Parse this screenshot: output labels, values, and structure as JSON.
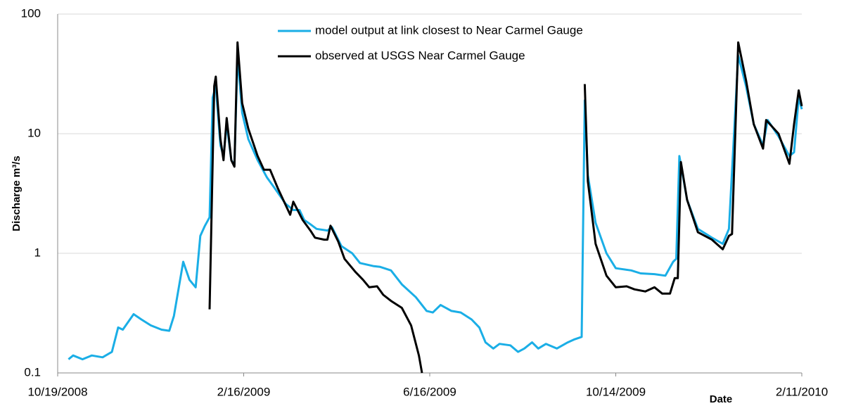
{
  "chart_data": {
    "type": "line",
    "y_label": "Discharge m³/s",
    "x_label": "Date",
    "log_y": true,
    "grid": true,
    "ylim": [
      0.1,
      100
    ],
    "yticks": [
      0.1,
      1,
      10,
      100
    ],
    "xlim": [
      "2008-10-19",
      "2010-02-11"
    ],
    "xticks": [
      {
        "value": "2008-10-19",
        "label": "10/19/2008"
      },
      {
        "value": "2009-02-16",
        "label": "2/16/2009"
      },
      {
        "value": "2009-06-16",
        "label": "6/16/2009"
      },
      {
        "value": "2009-10-14",
        "label": "10/14/2009"
      },
      {
        "value": "2010-02-11",
        "label": "2/11/2010"
      }
    ],
    "series": [
      {
        "name": "model output at link closest to Near Carmel Gauge",
        "color": "#1aaee6",
        "x": [
          "2008-10-26",
          "2008-10-29",
          "2008-11-04",
          "2008-11-10",
          "2008-11-17",
          "2008-11-23",
          "2008-11-27",
          "2008-11-30",
          "2008-12-07",
          "2008-12-12",
          "2008-12-18",
          "2008-12-25",
          "2008-12-30",
          "2009-01-02",
          "2009-01-08",
          "2009-01-12",
          "2009-01-16",
          "2009-01-19",
          "2009-01-22",
          "2009-01-25",
          "2009-01-27",
          "2009-01-29",
          "2009-02-01",
          "2009-02-03",
          "2009-02-05",
          "2009-02-08",
          "2009-02-10",
          "2009-02-12",
          "2009-02-15",
          "2009-02-19",
          "2009-02-25",
          "2009-03-03",
          "2009-03-08",
          "2009-03-15",
          "2009-03-20",
          "2009-03-24",
          "2009-03-27",
          "2009-03-31",
          "2009-04-04",
          "2009-04-11",
          "2009-04-14",
          "2009-04-20",
          "2009-04-27",
          "2009-05-02",
          "2009-05-11",
          "2009-05-15",
          "2009-05-22",
          "2009-05-29",
          "2009-06-07",
          "2009-06-14",
          "2009-06-18",
          "2009-06-23",
          "2009-06-30",
          "2009-07-06",
          "2009-07-13",
          "2009-07-18",
          "2009-07-22",
          "2009-07-27",
          "2009-07-31",
          "2009-08-07",
          "2009-08-12",
          "2009-08-16",
          "2009-08-21",
          "2009-08-25",
          "2009-08-30",
          "2009-09-06",
          "2009-09-13",
          "2009-09-17",
          "2009-09-22",
          "2009-09-24",
          "2009-09-26",
          "2009-10-01",
          "2009-10-08",
          "2009-10-14",
          "2009-10-24",
          "2009-10-30",
          "2009-11-08",
          "2009-11-15",
          "2009-11-20",
          "2009-11-22",
          "2009-11-24",
          "2009-11-29",
          "2009-12-06",
          "2009-12-15",
          "2009-12-22",
          "2009-12-26",
          "2010-01-01",
          "2010-01-06",
          "2010-01-11",
          "2010-01-17",
          "2010-01-20",
          "2010-01-27",
          "2010-02-03",
          "2010-02-06",
          "2010-02-09",
          "2010-02-11"
        ],
        "values": [
          0.13,
          0.14,
          0.13,
          0.14,
          0.135,
          0.15,
          0.24,
          0.23,
          0.31,
          0.28,
          0.25,
          0.23,
          0.225,
          0.3,
          0.85,
          0.6,
          0.52,
          1.4,
          1.7,
          2.0,
          20,
          25,
          8,
          6.5,
          12,
          6,
          5.5,
          45,
          15,
          9,
          6,
          4.3,
          3.5,
          2.6,
          2.3,
          2.3,
          1.9,
          1.75,
          1.6,
          1.55,
          1.65,
          1.15,
          1.0,
          0.83,
          0.78,
          0.77,
          0.72,
          0.55,
          0.43,
          0.33,
          0.32,
          0.37,
          0.33,
          0.32,
          0.28,
          0.24,
          0.18,
          0.16,
          0.175,
          0.17,
          0.15,
          0.16,
          0.18,
          0.16,
          0.175,
          0.16,
          0.18,
          0.19,
          0.2,
          19,
          4.5,
          1.8,
          1.0,
          0.75,
          0.72,
          0.68,
          0.67,
          0.65,
          0.85,
          0.9,
          6.5,
          2.8,
          1.6,
          1.35,
          1.2,
          1.6,
          45,
          25,
          12,
          8,
          13,
          9.5,
          6.5,
          7,
          20,
          16
        ]
      },
      {
        "name": "observed at USGS Near Carmel Gauge",
        "color": "#000000",
        "x": [
          "2009-01-25",
          "2009-01-28",
          "2009-01-29",
          "2009-02-01",
          "2009-02-03",
          "2009-02-05",
          "2009-02-08",
          "2009-02-10",
          "2009-02-12",
          "2009-02-15",
          "2009-02-19",
          "2009-02-25",
          "2009-03-01",
          "2009-03-05",
          "2009-03-10",
          "2009-03-18",
          "2009-03-20",
          "2009-03-26",
          "2009-03-31",
          "2009-04-03",
          "2009-04-09",
          "2009-04-11",
          "2009-04-13",
          "2009-04-18",
          "2009-04-22",
          "2009-04-29",
          "2009-05-04",
          "2009-05-08",
          "2009-05-13",
          "2009-05-17",
          "2009-05-22",
          "2009-05-29",
          "2009-06-04",
          "2009-06-09",
          "2009-06-11",
          "2009-08-12",
          "2009-09-24",
          "2009-09-26",
          "2009-10-01",
          "2009-10-08",
          "2009-10-14",
          "2009-10-21",
          "2009-10-26",
          "2009-11-02",
          "2009-11-08",
          "2009-11-13",
          "2009-11-18",
          "2009-11-21",
          "2009-11-23",
          "2009-11-25",
          "2009-11-29",
          "2009-12-06",
          "2009-12-15",
          "2009-12-22",
          "2009-12-26",
          "2009-12-28",
          "2010-01-01",
          "2010-01-06",
          "2010-01-11",
          "2010-01-17",
          "2010-01-19",
          "2010-01-27",
          "2010-02-03",
          "2010-02-06",
          "2010-02-09",
          "2010-02-11"
        ],
        "values": [
          0.34,
          25,
          30,
          9,
          6,
          13.5,
          6,
          5.3,
          58,
          18,
          11,
          6.5,
          5,
          5.0,
          3.5,
          2.1,
          2.7,
          1.9,
          1.55,
          1.35,
          1.3,
          1.3,
          1.7,
          1.25,
          0.9,
          0.7,
          0.6,
          0.52,
          0.53,
          0.45,
          0.4,
          0.35,
          0.25,
          0.14,
          0.1,
          null,
          26,
          4,
          1.2,
          0.65,
          0.52,
          0.53,
          0.5,
          0.48,
          0.52,
          0.46,
          0.46,
          0.62,
          0.62,
          5.8,
          2.8,
          1.5,
          1.3,
          1.08,
          1.4,
          1.45,
          58,
          28,
          12,
          7.5,
          13,
          10,
          5.6,
          12,
          23,
          17
        ]
      }
    ]
  }
}
